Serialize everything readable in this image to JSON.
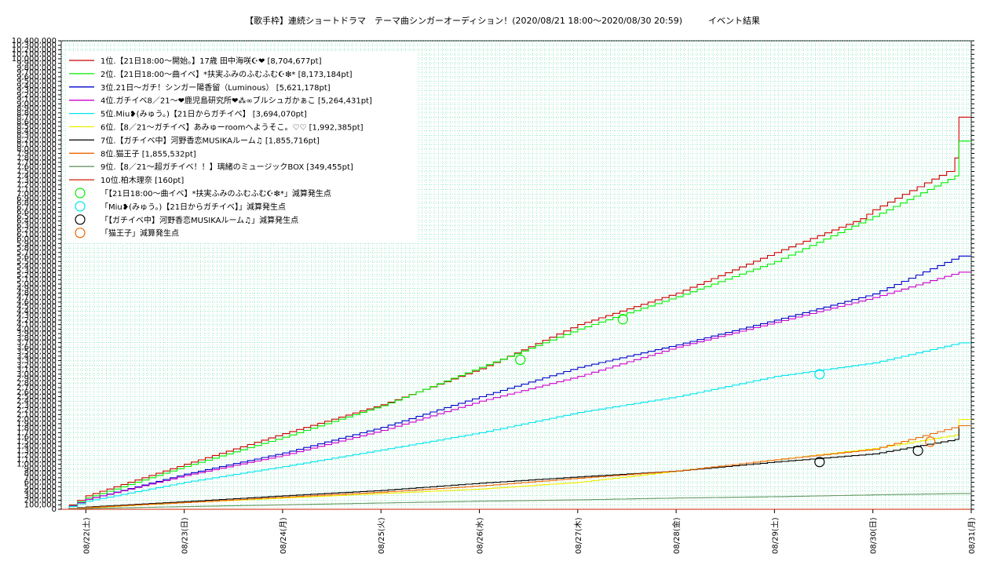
{
  "chart_data": {
    "type": "line",
    "title": "【歌手枠】連続ショートドラマ　テーマ曲シンガーオーディション！(2020/08/21 18:00〜2020/08/30 20:59)　　　イベント結果",
    "ylim": [
      0,
      10400000
    ],
    "ytick_step": 100000,
    "ytick_labels": [
      "0",
      "100,000",
      "200,000",
      "300,000",
      "400,000",
      "500,000",
      "600,000",
      "700,000",
      "800,000",
      "900,000",
      "1,000,000",
      "1,100,000",
      "1,200,000",
      "1,300,000",
      "1,400,000",
      "1,500,000",
      "1,600,000",
      "1,700,000",
      "1,800,000",
      "1,900,000",
      "2,000,000",
      "2,100,000",
      "2,200,000",
      "2,300,000",
      "2,400,000",
      "2,500,000",
      "2,600,000",
      "2,700,000",
      "2,800,000",
      "2,900,000",
      "3,000,000",
      "3,100,000",
      "3,200,000",
      "3,300,000",
      "3,400,000",
      "3,500,000",
      "3,600,000",
      "3,700,000",
      "3,800,000",
      "3,900,000",
      "4,000,000",
      "4,100,000",
      "4,200,000",
      "4,300,000",
      "4,400,000",
      "4,500,000",
      "4,600,000",
      "4,700,000",
      "4,800,000",
      "4,900,000",
      "5,000,000",
      "5,100,000",
      "5,200,000",
      "5,300,000",
      "5,400,000",
      "5,500,000",
      "5,600,000",
      "5,700,000",
      "5,800,000",
      "5,900,000",
      "6,000,000",
      "6,100,000",
      "6,200,000",
      "6,300,000",
      "6,400,000",
      "6,500,000",
      "6,600,000",
      "6,700,000",
      "6,800,000",
      "6,900,000",
      "7,000,000",
      "7,100,000",
      "7,200,000",
      "7,300,000",
      "7,400,000",
      "7,500,000",
      "7,600,000",
      "7,700,000",
      "7,800,000",
      "7,900,000",
      "8,000,000",
      "8,100,000",
      "8,200,000",
      "8,300,000",
      "8,400,000",
      "8,500,000",
      "8,600,000",
      "8,700,000",
      "8,800,000",
      "8,900,000",
      "9,000,000",
      "9,100,000",
      "9,200,000",
      "9,300,000",
      "9,400,000",
      "9,500,000",
      "9,600,000",
      "9,700,000",
      "9,800,000",
      "9,900,000",
      "10,000,000",
      "10,100,000",
      "10,200,000",
      "10,300,000",
      "10,400,000"
    ],
    "xlim": [
      "2020-08-21 18:00",
      "2020-08-31 00:00"
    ],
    "x_ticks": [
      {
        "label": "08/22(土)",
        "x": "2020-08-22 00:00"
      },
      {
        "label": "08/23(日)",
        "x": "2020-08-23 00:00"
      },
      {
        "label": "08/24(月)",
        "x": "2020-08-24 00:00"
      },
      {
        "label": "08/25(火)",
        "x": "2020-08-25 00:00"
      },
      {
        "label": "08/26(水)",
        "x": "2020-08-26 00:00"
      },
      {
        "label": "08/27(木)",
        "x": "2020-08-27 00:00"
      },
      {
        "label": "08/28(金)",
        "x": "2020-08-28 00:00"
      },
      {
        "label": "08/29(土)",
        "x": "2020-08-29 00:00"
      },
      {
        "label": "08/30(日)",
        "x": "2020-08-30 00:00"
      },
      {
        "label": "08/31(月)",
        "x": "2020-08-31 00:00"
      }
    ],
    "grid": true,
    "legend_position": "top-left",
    "series": [
      {
        "name": "1位.【21日18:00〜開始。】17歳 田中海咲☪︎❤ [8,704,677pt]",
        "color": "#cc0000",
        "x": [
          "2020-08-21 18:00",
          "2020-08-22 00:00",
          "2020-08-23 00:00",
          "2020-08-24 00:00",
          "2020-08-25 00:00",
          "2020-08-26 00:00",
          "2020-08-27 00:00",
          "2020-08-28 00:00",
          "2020-08-29 00:00",
          "2020-08-29 21:00",
          "2020-08-30 00:00",
          "2020-08-30 18:00",
          "2020-08-30 20:00",
          "2020-08-30 20:59",
          "2020-08-31 00:00"
        ],
        "y": [
          0,
          300000,
          1000000,
          1680000,
          2320000,
          3120000,
          4100000,
          4800000,
          5700000,
          6450000,
          6650000,
          7500000,
          7800000,
          8704677,
          8704677
        ]
      },
      {
        "name": "2位.【21日18:00〜曲イベ】*扶実ふみのふむふむ☪︎❇︎* [8,173,184pt]",
        "color": "#00ee00",
        "x": [
          "2020-08-21 18:00",
          "2020-08-22 00:00",
          "2020-08-23 00:00",
          "2020-08-24 00:00",
          "2020-08-25 00:00",
          "2020-08-26 00:00",
          "2020-08-27 00:00",
          "2020-08-28 00:00",
          "2020-08-29 00:00",
          "2020-08-30 00:00",
          "2020-08-30 20:00",
          "2020-08-30 20:59",
          "2020-08-31 00:00"
        ],
        "y": [
          0,
          250000,
          950000,
          1600000,
          2300000,
          3150000,
          4000000,
          4720000,
          5500000,
          6500000,
          7400000,
          8173184,
          8173184
        ]
      },
      {
        "name": "3位.21日〜ガチ！シンガー陽香留（Luminous） [5,621,178pt]",
        "color": "#0000cc",
        "x": [
          "2020-08-21 18:00",
          "2020-08-22 00:00",
          "2020-08-23 00:00",
          "2020-08-24 00:00",
          "2020-08-25 00:00",
          "2020-08-26 00:00",
          "2020-08-27 00:00",
          "2020-08-28 00:00",
          "2020-08-29 00:00",
          "2020-08-30 00:00",
          "2020-08-30 20:59",
          "2020-08-31 00:00"
        ],
        "y": [
          0,
          220000,
          780000,
          1250000,
          1820000,
          2500000,
          3150000,
          3650000,
          4200000,
          4780000,
          5621178,
          5621178
        ]
      },
      {
        "name": "4位.ガチイベ8／21〜❤鹿児島研究所❤⁂∞ブルシュガかぁこ [5,264,431pt]",
        "color": "#cc00cc",
        "x": [
          "2020-08-21 18:00",
          "2020-08-22 00:00",
          "2020-08-23 00:00",
          "2020-08-24 00:00",
          "2020-08-25 00:00",
          "2020-08-26 00:00",
          "2020-08-27 00:00",
          "2020-08-28 00:00",
          "2020-08-29 00:00",
          "2020-08-30 00:00",
          "2020-08-30 20:59",
          "2020-08-31 00:00"
        ],
        "y": [
          0,
          220000,
          750000,
          1200000,
          1750000,
          2400000,
          2950000,
          3600000,
          4150000,
          4700000,
          5264431,
          5264431
        ]
      },
      {
        "name": "5位.Miu❥(みゅう。)【21日からガチイベ】 [3,694,070pt]",
        "color": "#00e5ee",
        "x": [
          "2020-08-21 18:00",
          "2020-08-22 00:00",
          "2020-08-23 00:00",
          "2020-08-24 00:00",
          "2020-08-25 00:00",
          "2020-08-26 00:00",
          "2020-08-27 00:00",
          "2020-08-28 00:00",
          "2020-08-29 00:00",
          "2020-08-30 00:00",
          "2020-08-30 20:59",
          "2020-08-31 00:00"
        ],
        "y": [
          0,
          180000,
          600000,
          950000,
          1320000,
          1700000,
          2150000,
          2500000,
          2950000,
          3250000,
          3694070,
          3694070
        ]
      },
      {
        "name": "6位.【8／21〜ガチイベ】あみゅーroomへようそこ。♡♡ [1,992,385pt]",
        "color": "#eeee00",
        "x": [
          "2020-08-21 18:00",
          "2020-08-22 00:00",
          "2020-08-23 00:00",
          "2020-08-24 00:00",
          "2020-08-25 00:00",
          "2020-08-26 00:00",
          "2020-08-27 00:00",
          "2020-08-28 00:00",
          "2020-08-29 00:00",
          "2020-08-30 00:00",
          "2020-08-30 20:00",
          "2020-08-30 20:59",
          "2020-08-31 00:00"
        ],
        "y": [
          0,
          30000,
          150000,
          250000,
          350000,
          450000,
          600000,
          850000,
          1100000,
          1350000,
          1650000,
          1992385,
          1992385
        ]
      },
      {
        "name": "7位.【ガチイベ中】河野香恋MUSIKAルーム♫ [1,855,716pt]",
        "color": "#000000",
        "x": [
          "2020-08-21 18:00",
          "2020-08-22 00:00",
          "2020-08-23 00:00",
          "2020-08-24 00:00",
          "2020-08-25 00:00",
          "2020-08-26 00:00",
          "2020-08-27 00:00",
          "2020-08-28 00:00",
          "2020-08-29 00:00",
          "2020-08-30 00:00",
          "2020-08-30 20:00",
          "2020-08-30 20:59",
          "2020-08-31 00:00"
        ],
        "y": [
          0,
          50000,
          170000,
          300000,
          420000,
          580000,
          720000,
          850000,
          1050000,
          1230000,
          1550000,
          1855716,
          1855716
        ]
      },
      {
        "name": "8位.猫王子 [1,855,532pt]",
        "color": "#ee6600",
        "x": [
          "2020-08-21 18:00",
          "2020-08-22 00:00",
          "2020-08-23 00:00",
          "2020-08-24 00:00",
          "2020-08-25 00:00",
          "2020-08-26 00:00",
          "2020-08-27 00:00",
          "2020-08-28 00:00",
          "2020-08-29 00:00",
          "2020-08-30 00:00",
          "2020-08-30 20:59",
          "2020-08-31 00:00"
        ],
        "y": [
          0,
          40000,
          150000,
          270000,
          380000,
          520000,
          690000,
          850000,
          1100000,
          1330000,
          1855532,
          1855532
        ]
      },
      {
        "name": "9位.【8／21〜超ガチイベ！！】璃緒のミュージックBOX [349,455pt]",
        "color": "#669966",
        "x": [
          "2020-08-21 18:00",
          "2020-08-22 00:00",
          "2020-08-23 00:00",
          "2020-08-24 00:00",
          "2020-08-25 00:00",
          "2020-08-26 00:00",
          "2020-08-27 00:00",
          "2020-08-28 00:00",
          "2020-08-29 00:00",
          "2020-08-30 00:00",
          "2020-08-30 20:59",
          "2020-08-31 00:00"
        ],
        "y": [
          0,
          20000,
          60000,
          100000,
          140000,
          180000,
          210000,
          250000,
          280000,
          320000,
          349455,
          349455
        ]
      },
      {
        "name": "10位.柏木理奈 [160pt]",
        "color": "#cc2200",
        "x": [
          "2020-08-21 18:00",
          "2020-08-31 00:00"
        ],
        "y": [
          160,
          160
        ]
      }
    ],
    "markers": [
      {
        "name": "「【21日18:00〜曲イベ】*扶実ふみのふむふむ☪︎❇︎*」減算発生点",
        "color": "#00ee00",
        "points": [
          {
            "x": "2020-08-26 10:00",
            "y": 3320000
          },
          {
            "x": "2020-08-27 11:00",
            "y": 4220000
          }
        ]
      },
      {
        "name": "「Miu❥(みゅう。)【21日からガチイベ】」減算発生点",
        "color": "#00e5ee",
        "points": [
          {
            "x": "2020-08-29 11:00",
            "y": 3000000
          }
        ]
      },
      {
        "name": "「【ガチイベ中】河野香恋MUSIKAルーム♫」減算発生点",
        "color": "#000000",
        "points": [
          {
            "x": "2020-08-29 11:00",
            "y": 1050000
          },
          {
            "x": "2020-08-30 11:00",
            "y": 1300000
          }
        ]
      },
      {
        "name": "「猫王子」減算発生点",
        "color": "#ee6600",
        "points": [
          {
            "x": "2020-08-30 14:00",
            "y": 1500000
          }
        ]
      }
    ]
  }
}
